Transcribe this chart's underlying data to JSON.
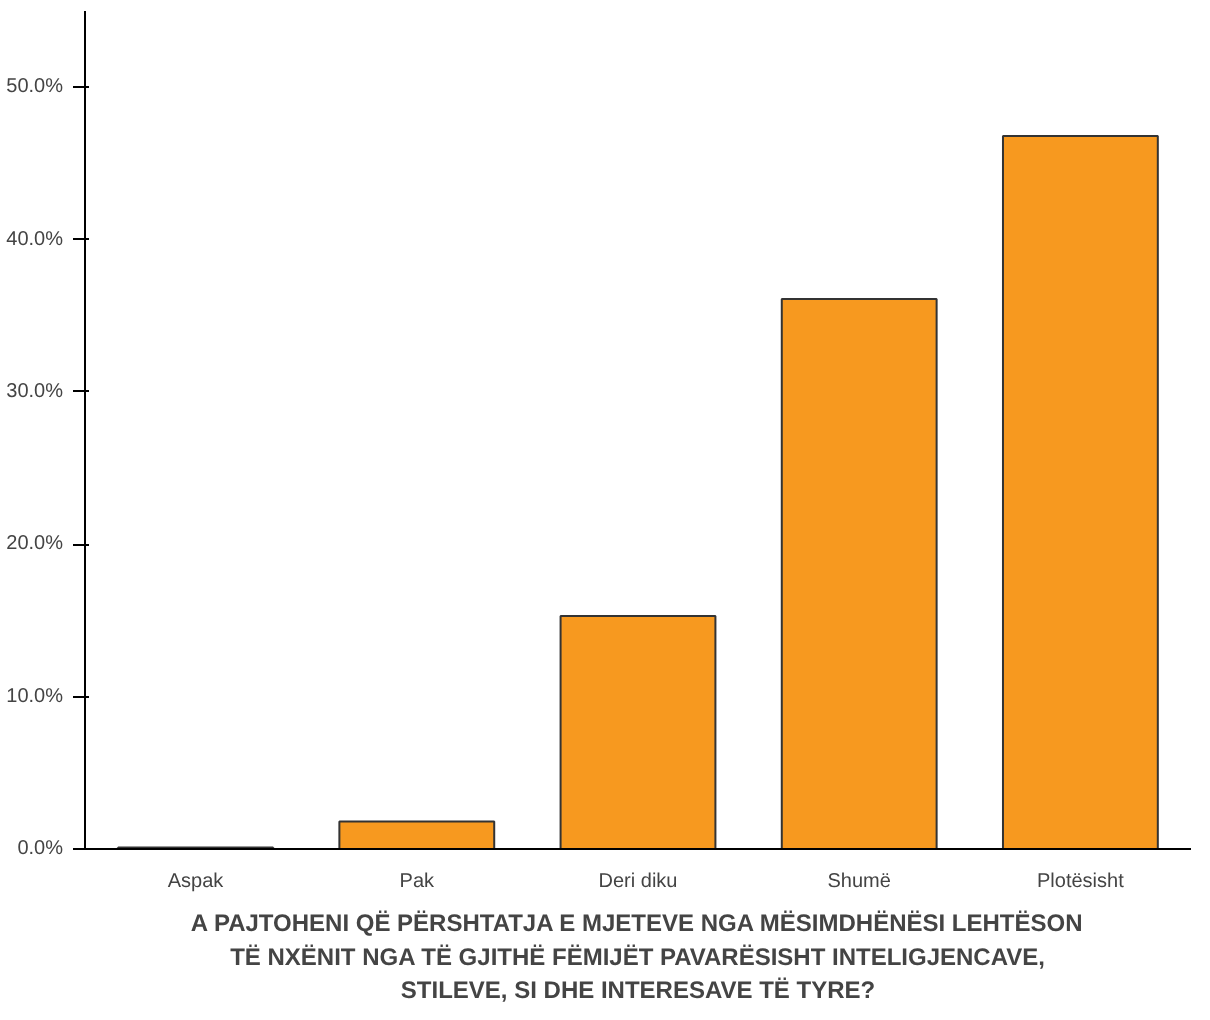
{
  "chart_data": {
    "type": "bar",
    "xlabel": "A PAJTOHENI QË PËRSHTATJA E MJETEVE NGA MËSIMDHËNËSI LEHTËSON\nTË NXËNIT NGA TË GJITHË FËMIJËT PAVARËSISHT INTELIGJENCAVE,\nSTILEVE, SI DHE INTERESAVE TË TYRE?",
    "categories": [
      "Aspak",
      "Pak",
      "Deri diku",
      "Shumë",
      "Plotësisht"
    ],
    "values": [
      0.1,
      1.8,
      15.3,
      36.1,
      46.8
    ],
    "color": "#f7991f",
    "ylim": [
      0,
      55
    ],
    "yticks": [
      {
        "value": 0,
        "label": "0.0%"
      },
      {
        "value": 10,
        "label": "10.0%"
      },
      {
        "value": 20,
        "label": "20.0%"
      },
      {
        "value": 30,
        "label": "30.0%"
      },
      {
        "value": 40,
        "label": "40.0%"
      },
      {
        "value": 50,
        "label": "50.0%"
      }
    ],
    "grid": false
  }
}
